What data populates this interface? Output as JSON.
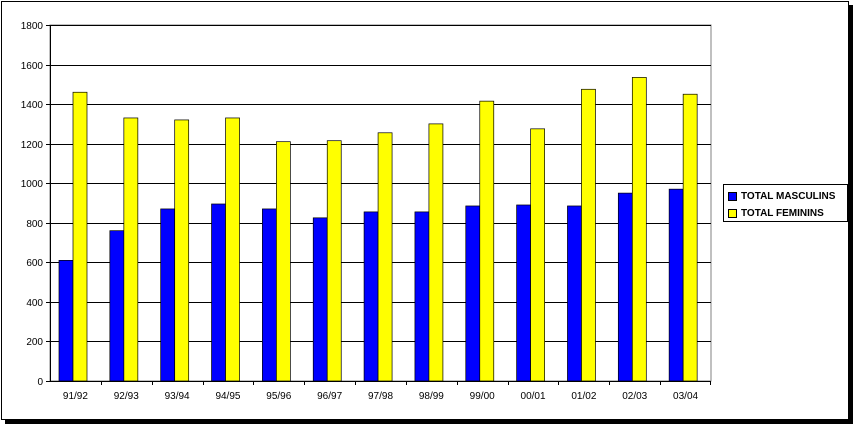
{
  "chart_data": {
    "type": "bar",
    "title": "",
    "xlabel": "",
    "ylabel": "",
    "categories": [
      "91/92",
      "92/93",
      "93/94",
      "94/95",
      "95/96",
      "96/97",
      "97/98",
      "98/99",
      "99/00",
      "00/01",
      "01/02",
      "02/03",
      "03/04"
    ],
    "series": [
      {
        "name": "TOTAL MASCULINS",
        "color": "#0000ff",
        "values": [
          610,
          760,
          870,
          895,
          870,
          825,
          855,
          855,
          885,
          890,
          885,
          950,
          970
        ]
      },
      {
        "name": "TOTAL FEMININS",
        "color": "#ffff00",
        "values": [
          1460,
          1330,
          1320,
          1330,
          1210,
          1215,
          1255,
          1300,
          1415,
          1275,
          1475,
          1535,
          1450
        ]
      }
    ],
    "ylim": [
      0,
      1800
    ],
    "yticks": [
      0,
      200,
      400,
      600,
      800,
      1000,
      1200,
      1400,
      1600,
      1800
    ],
    "grid": true,
    "legend_position": "right"
  }
}
